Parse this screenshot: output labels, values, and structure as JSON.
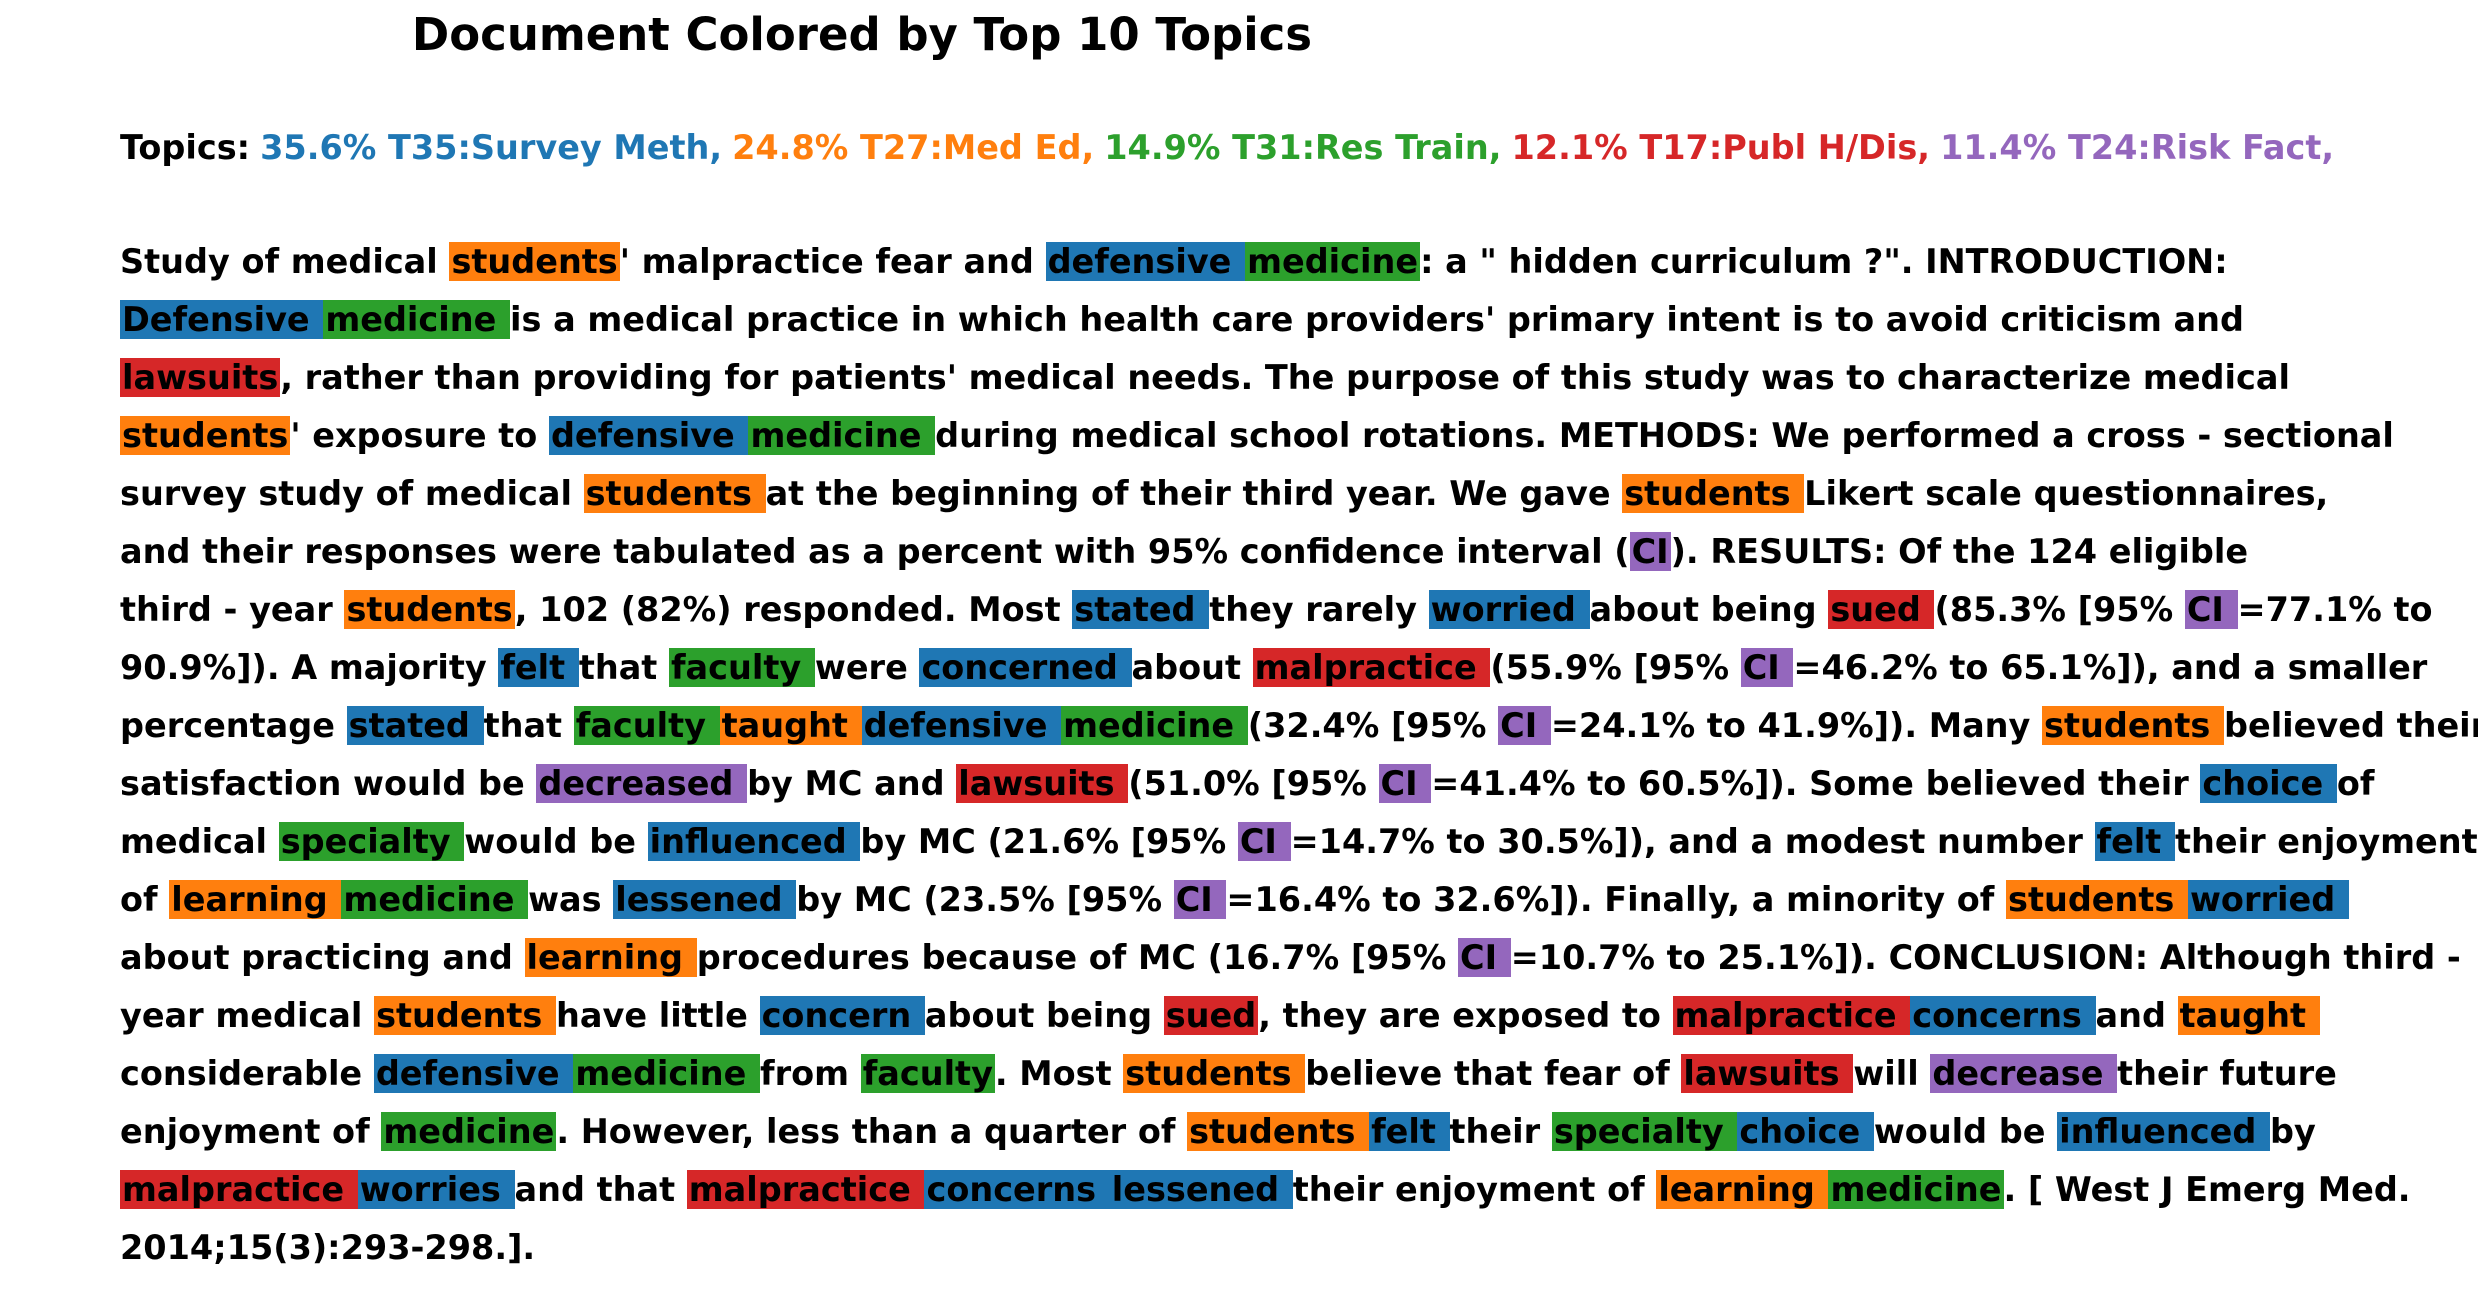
{
  "title": "Document Colored by Top 10 Topics",
  "topics_label": "Topics:",
  "topics": [
    {
      "text": "35.6% T35:Survey Meth,",
      "color": "#1f77b4"
    },
    {
      "text": "24.8% T27:Med Ed,",
      "color": "#ff7f0e"
    },
    {
      "text": "14.9% T31:Res Train,",
      "color": "#2ca02c"
    },
    {
      "text": "12.1% T17:Publ H/Dis,",
      "color": "#d62728"
    },
    {
      "text": "11.4% T24:Risk Fact,",
      "color": "#9467bd"
    }
  ],
  "colors": {
    "blue": "#1f77b4",
    "orange": "#ff7f0e",
    "green": "#2ca02c",
    "red": "#d62728",
    "purple": "#9467bd"
  },
  "lines": [
    [
      [
        "Study of medical "
      ],
      [
        "students",
        "orange"
      ],
      [
        "' malpractice fear and "
      ],
      [
        "defensive ",
        "blue"
      ],
      [
        "medicine",
        "green"
      ],
      [
        ": a \" hidden curriculum ?\". INTRODUCTION:"
      ]
    ],
    [
      [
        "Defensive ",
        "blue"
      ],
      [
        "medicine ",
        "green"
      ],
      [
        "is a medical practice in which health care providers' primary intent is to avoid criticism and"
      ]
    ],
    [
      [
        "lawsuits",
        "red"
      ],
      [
        ", rather than providing for patients' medical needs. The purpose of this study was to characterize medical"
      ]
    ],
    [
      [
        "students",
        "orange"
      ],
      [
        "' exposure to "
      ],
      [
        "defensive ",
        "blue"
      ],
      [
        "medicine ",
        "green"
      ],
      [
        "during medical school rotations. METHODS: We performed a cross - sectional"
      ]
    ],
    [
      [
        "survey study of medical "
      ],
      [
        "students ",
        "orange"
      ],
      [
        "at the beginning of their third year. We gave "
      ],
      [
        "students ",
        "orange"
      ],
      [
        "Likert scale questionnaires,"
      ]
    ],
    [
      [
        "and their responses were tabulated as a percent with 95% confidence interval ("
      ],
      [
        "CI",
        "purple"
      ],
      [
        "). RESULTS: Of the 124 eligible"
      ]
    ],
    [
      [
        "third - year "
      ],
      [
        "students",
        "orange"
      ],
      [
        ", 102 (82%) responded. Most "
      ],
      [
        "stated ",
        "blue"
      ],
      [
        "they rarely "
      ],
      [
        "worried ",
        "blue"
      ],
      [
        "about being "
      ],
      [
        "sued ",
        "red"
      ],
      [
        "(85.3% [95% "
      ],
      [
        "CI ",
        "purple"
      ],
      [
        "=77.1% to"
      ]
    ],
    [
      [
        "90.9%]). A majority "
      ],
      [
        "felt ",
        "blue"
      ],
      [
        "that "
      ],
      [
        "faculty ",
        "green"
      ],
      [
        "were "
      ],
      [
        "concerned ",
        "blue"
      ],
      [
        "about "
      ],
      [
        "malpractice ",
        "red"
      ],
      [
        "(55.9% [95% "
      ],
      [
        "CI ",
        "purple"
      ],
      [
        "=46.2% to 65.1%]), and a smaller"
      ]
    ],
    [
      [
        "percentage "
      ],
      [
        "stated ",
        "blue"
      ],
      [
        "that "
      ],
      [
        "faculty ",
        "green"
      ],
      [
        "taught ",
        "orange"
      ],
      [
        "defensive ",
        "blue"
      ],
      [
        "medicine ",
        "green"
      ],
      [
        "(32.4% [95% "
      ],
      [
        "CI ",
        "purple"
      ],
      [
        "=24.1% to 41.9%]). Many "
      ],
      [
        "students ",
        "orange"
      ],
      [
        "believed their"
      ]
    ],
    [
      [
        "satisfaction would be "
      ],
      [
        "decreased ",
        "purple"
      ],
      [
        "by MC and "
      ],
      [
        "lawsuits ",
        "red"
      ],
      [
        "(51.0% [95% "
      ],
      [
        "CI ",
        "purple"
      ],
      [
        "=41.4% to 60.5%]). Some believed their "
      ],
      [
        "choice ",
        "blue"
      ],
      [
        "of"
      ]
    ],
    [
      [
        "medical "
      ],
      [
        "specialty ",
        "green"
      ],
      [
        "would be "
      ],
      [
        "influenced ",
        "blue"
      ],
      [
        "by MC (21.6% [95% "
      ],
      [
        "CI ",
        "purple"
      ],
      [
        "=14.7% to 30.5%]), and a modest number "
      ],
      [
        "felt ",
        "blue"
      ],
      [
        "their enjoyment"
      ]
    ],
    [
      [
        "of "
      ],
      [
        "learning ",
        "orange"
      ],
      [
        "medicine ",
        "green"
      ],
      [
        "was "
      ],
      [
        "lessened ",
        "blue"
      ],
      [
        "by MC (23.5% [95% "
      ],
      [
        "CI ",
        "purple"
      ],
      [
        "=16.4% to 32.6%]). Finally, a minority of "
      ],
      [
        "students ",
        "orange"
      ],
      [
        "worried ",
        "blue"
      ]
    ],
    [
      [
        "about practicing and "
      ],
      [
        "learning ",
        "orange"
      ],
      [
        "procedures because of MC (16.7% [95% "
      ],
      [
        "CI ",
        "purple"
      ],
      [
        "=10.7% to 25.1%]). CONCLUSION: Although third -"
      ]
    ],
    [
      [
        "year medical "
      ],
      [
        "students ",
        "orange"
      ],
      [
        "have little "
      ],
      [
        "concern ",
        "blue"
      ],
      [
        "about being "
      ],
      [
        "sued",
        "red"
      ],
      [
        ", they are exposed to "
      ],
      [
        "malpractice ",
        "red"
      ],
      [
        "concerns ",
        "blue"
      ],
      [
        "and "
      ],
      [
        "taught ",
        "orange"
      ]
    ],
    [
      [
        "considerable "
      ],
      [
        "defensive ",
        "blue"
      ],
      [
        "medicine ",
        "green"
      ],
      [
        "from "
      ],
      [
        "faculty",
        "green"
      ],
      [
        ". Most "
      ],
      [
        "students ",
        "orange"
      ],
      [
        "believe that fear of "
      ],
      [
        "lawsuits ",
        "red"
      ],
      [
        "will "
      ],
      [
        "decrease ",
        "purple"
      ],
      [
        "their future"
      ]
    ],
    [
      [
        "enjoyment of "
      ],
      [
        "medicine",
        "green"
      ],
      [
        ". However, less than a quarter of "
      ],
      [
        "students ",
        "orange"
      ],
      [
        "felt ",
        "blue"
      ],
      [
        "their "
      ],
      [
        "specialty ",
        "green"
      ],
      [
        "choice ",
        "blue"
      ],
      [
        "would be "
      ],
      [
        "influenced ",
        "blue"
      ],
      [
        "by"
      ]
    ],
    [
      [
        "malpractice ",
        "red"
      ],
      [
        "worries ",
        "blue"
      ],
      [
        "and that "
      ],
      [
        "malpractice ",
        "red"
      ],
      [
        "concerns ",
        "blue"
      ],
      [
        "lessened ",
        "blue"
      ],
      [
        "their enjoyment of "
      ],
      [
        "learning ",
        "orange"
      ],
      [
        "medicine",
        "green"
      ],
      [
        ". [ West J Emerg Med."
      ]
    ],
    [
      [
        "2014;15(3):293-298.]."
      ]
    ]
  ]
}
